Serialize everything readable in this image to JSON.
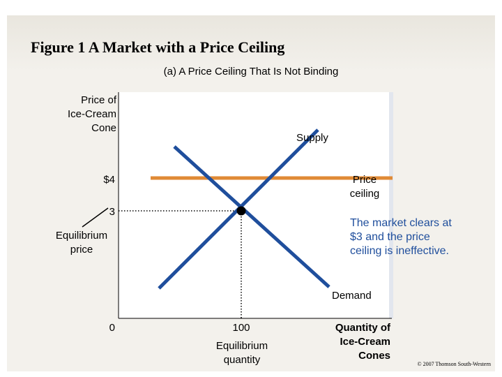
{
  "title": "Figure 1 A Market with a Price Ceiling",
  "subtitle": "(a) A Price Ceiling That Is Not Binding",
  "axes": {
    "y_label": [
      "Price of",
      "Ice-Cream",
      "Cone"
    ],
    "x_label": [
      "Quantity of",
      "Ice-Cream",
      "Cones"
    ],
    "origin": "0"
  },
  "curves": {
    "supply_label": "Supply",
    "demand_label": "Demand"
  },
  "price_ceiling": {
    "value_label": "$4",
    "label": [
      "Price",
      "ceiling"
    ],
    "color": "#e08a35"
  },
  "equilibrium": {
    "price_tick": "3",
    "price_label": [
      "Equilibrium",
      "price"
    ],
    "quantity_tick": "100",
    "quantity_label": [
      "Equilibrium",
      "quantity"
    ]
  },
  "annotation": [
    "The market clears at",
    "$3 and the price",
    "ceiling is ineffective."
  ],
  "annotation_color": "#1f4e9c",
  "curve_color": "#1f4e9c",
  "copyright": "© 2007 Thomson South-Western"
}
